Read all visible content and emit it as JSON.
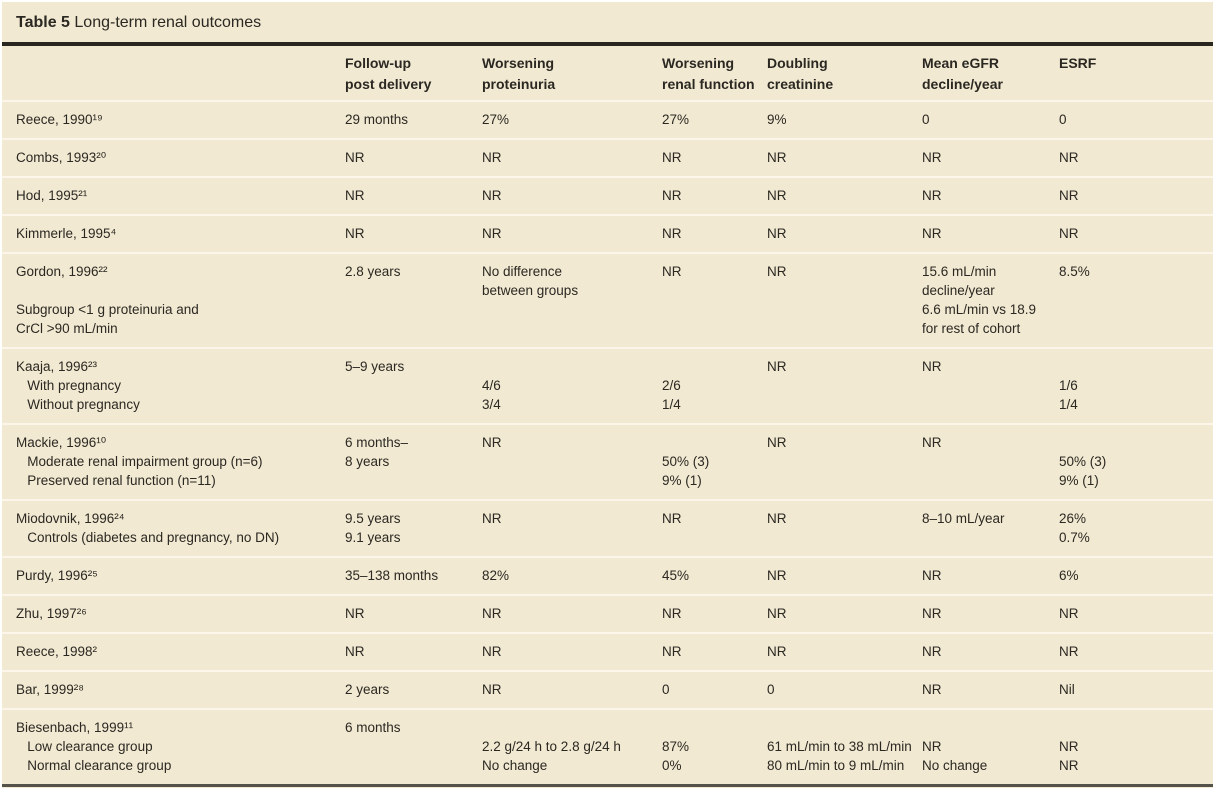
{
  "title": {
    "label": "Table 5",
    "text": " Long-term renal outcomes"
  },
  "colors": {
    "background": "#f1e9d2",
    "text": "#2b2822",
    "rule_dark": "#29251f",
    "rule_bottom": "#55524a",
    "row_separator": "#fbf6e9"
  },
  "table": {
    "columns": [
      "",
      "Follow-up\npost delivery",
      "Worsening\nproteinuria",
      "Worsening\nrenal function",
      "Doubling\ncreatinine",
      "Mean eGFR\ndecline/year",
      "ESRF"
    ],
    "rows": [
      [
        [
          "Reece, 1990¹⁹"
        ],
        [
          "29 months"
        ],
        [
          "27%"
        ],
        [
          "27%"
        ],
        [
          "9%"
        ],
        [
          "0"
        ],
        [
          "0"
        ]
      ],
      [
        [
          "Combs, 1993²⁰"
        ],
        [
          "NR"
        ],
        [
          "NR"
        ],
        [
          "NR"
        ],
        [
          "NR"
        ],
        [
          "NR"
        ],
        [
          "NR"
        ]
      ],
      [
        [
          "Hod, 1995²¹"
        ],
        [
          "NR"
        ],
        [
          "NR"
        ],
        [
          "NR"
        ],
        [
          "NR"
        ],
        [
          "NR"
        ],
        [
          "NR"
        ]
      ],
      [
        [
          "Kimmerle, 1995⁴"
        ],
        [
          "NR"
        ],
        [
          "NR"
        ],
        [
          "NR"
        ],
        [
          "NR"
        ],
        [
          "NR"
        ],
        [
          "NR"
        ]
      ],
      [
        [
          "Gordon, 1996²²",
          "",
          "Subgroup <1 g proteinuria and",
          "CrCl >90 mL/min"
        ],
        [
          "2.8 years"
        ],
        [
          "No difference",
          "between groups"
        ],
        [
          "NR"
        ],
        [
          "NR"
        ],
        [
          "15.6 mL/min",
          "decline/year",
          "6.6 mL/min vs 18.9",
          "for rest of cohort"
        ],
        [
          "8.5%"
        ]
      ],
      [
        [
          "Kaaja, 1996²³",
          "   With pregnancy",
          "   Without pregnancy"
        ],
        [
          "5–9 years"
        ],
        [
          "",
          "4/6",
          "3/4"
        ],
        [
          "",
          "2/6",
          "1/4"
        ],
        [
          "NR"
        ],
        [
          "NR"
        ],
        [
          "",
          "1/6",
          "1/4"
        ]
      ],
      [
        [
          "Mackie, 1996¹⁰",
          "   Moderate renal impairment group (n=6)",
          "   Preserved renal function (n=11)"
        ],
        [
          "6 months–",
          "8 years"
        ],
        [
          "NR"
        ],
        [
          "",
          "50% (3)",
          "9% (1)"
        ],
        [
          "NR"
        ],
        [
          "NR"
        ],
        [
          "",
          "50% (3)",
          "9% (1)"
        ]
      ],
      [
        [
          "Miodovnik, 1996²⁴",
          "   Controls (diabetes and pregnancy, no DN)"
        ],
        [
          "9.5 years",
          "9.1 years"
        ],
        [
          "NR"
        ],
        [
          "NR"
        ],
        [
          "NR"
        ],
        [
          "8–10 mL/year"
        ],
        [
          "26%",
          "0.7%"
        ]
      ],
      [
        [
          "Purdy, 1996²⁵"
        ],
        [
          "35–138 months"
        ],
        [
          "82%"
        ],
        [
          "45%"
        ],
        [
          "NR"
        ],
        [
          "NR"
        ],
        [
          "6%"
        ]
      ],
      [
        [
          "Zhu, 1997²⁶"
        ],
        [
          "NR"
        ],
        [
          "NR"
        ],
        [
          "NR"
        ],
        [
          "NR"
        ],
        [
          "NR"
        ],
        [
          "NR"
        ]
      ],
      [
        [
          "Reece, 1998²"
        ],
        [
          "NR"
        ],
        [
          "NR"
        ],
        [
          "NR"
        ],
        [
          "NR"
        ],
        [
          "NR"
        ],
        [
          "NR"
        ]
      ],
      [
        [
          "Bar, 1999²⁸"
        ],
        [
          "2 years"
        ],
        [
          "NR"
        ],
        [
          "0"
        ],
        [
          "0"
        ],
        [
          "NR"
        ],
        [
          "Nil"
        ]
      ],
      [
        [
          "Biesenbach, 1999¹¹",
          "   Low clearance group",
          "   Normal clearance group"
        ],
        [
          "6 months"
        ],
        [
          "",
          "2.2 g/24 h to 2.8 g/24 h",
          "No change"
        ],
        [
          "",
          "87%",
          "0%"
        ],
        [
          "",
          "61 mL/min to 38 mL/min",
          "80 mL/min to 9 mL/min"
        ],
        [
          "",
          "NR",
          "No change"
        ],
        [
          "",
          "NR",
          "NR"
        ]
      ]
    ]
  }
}
